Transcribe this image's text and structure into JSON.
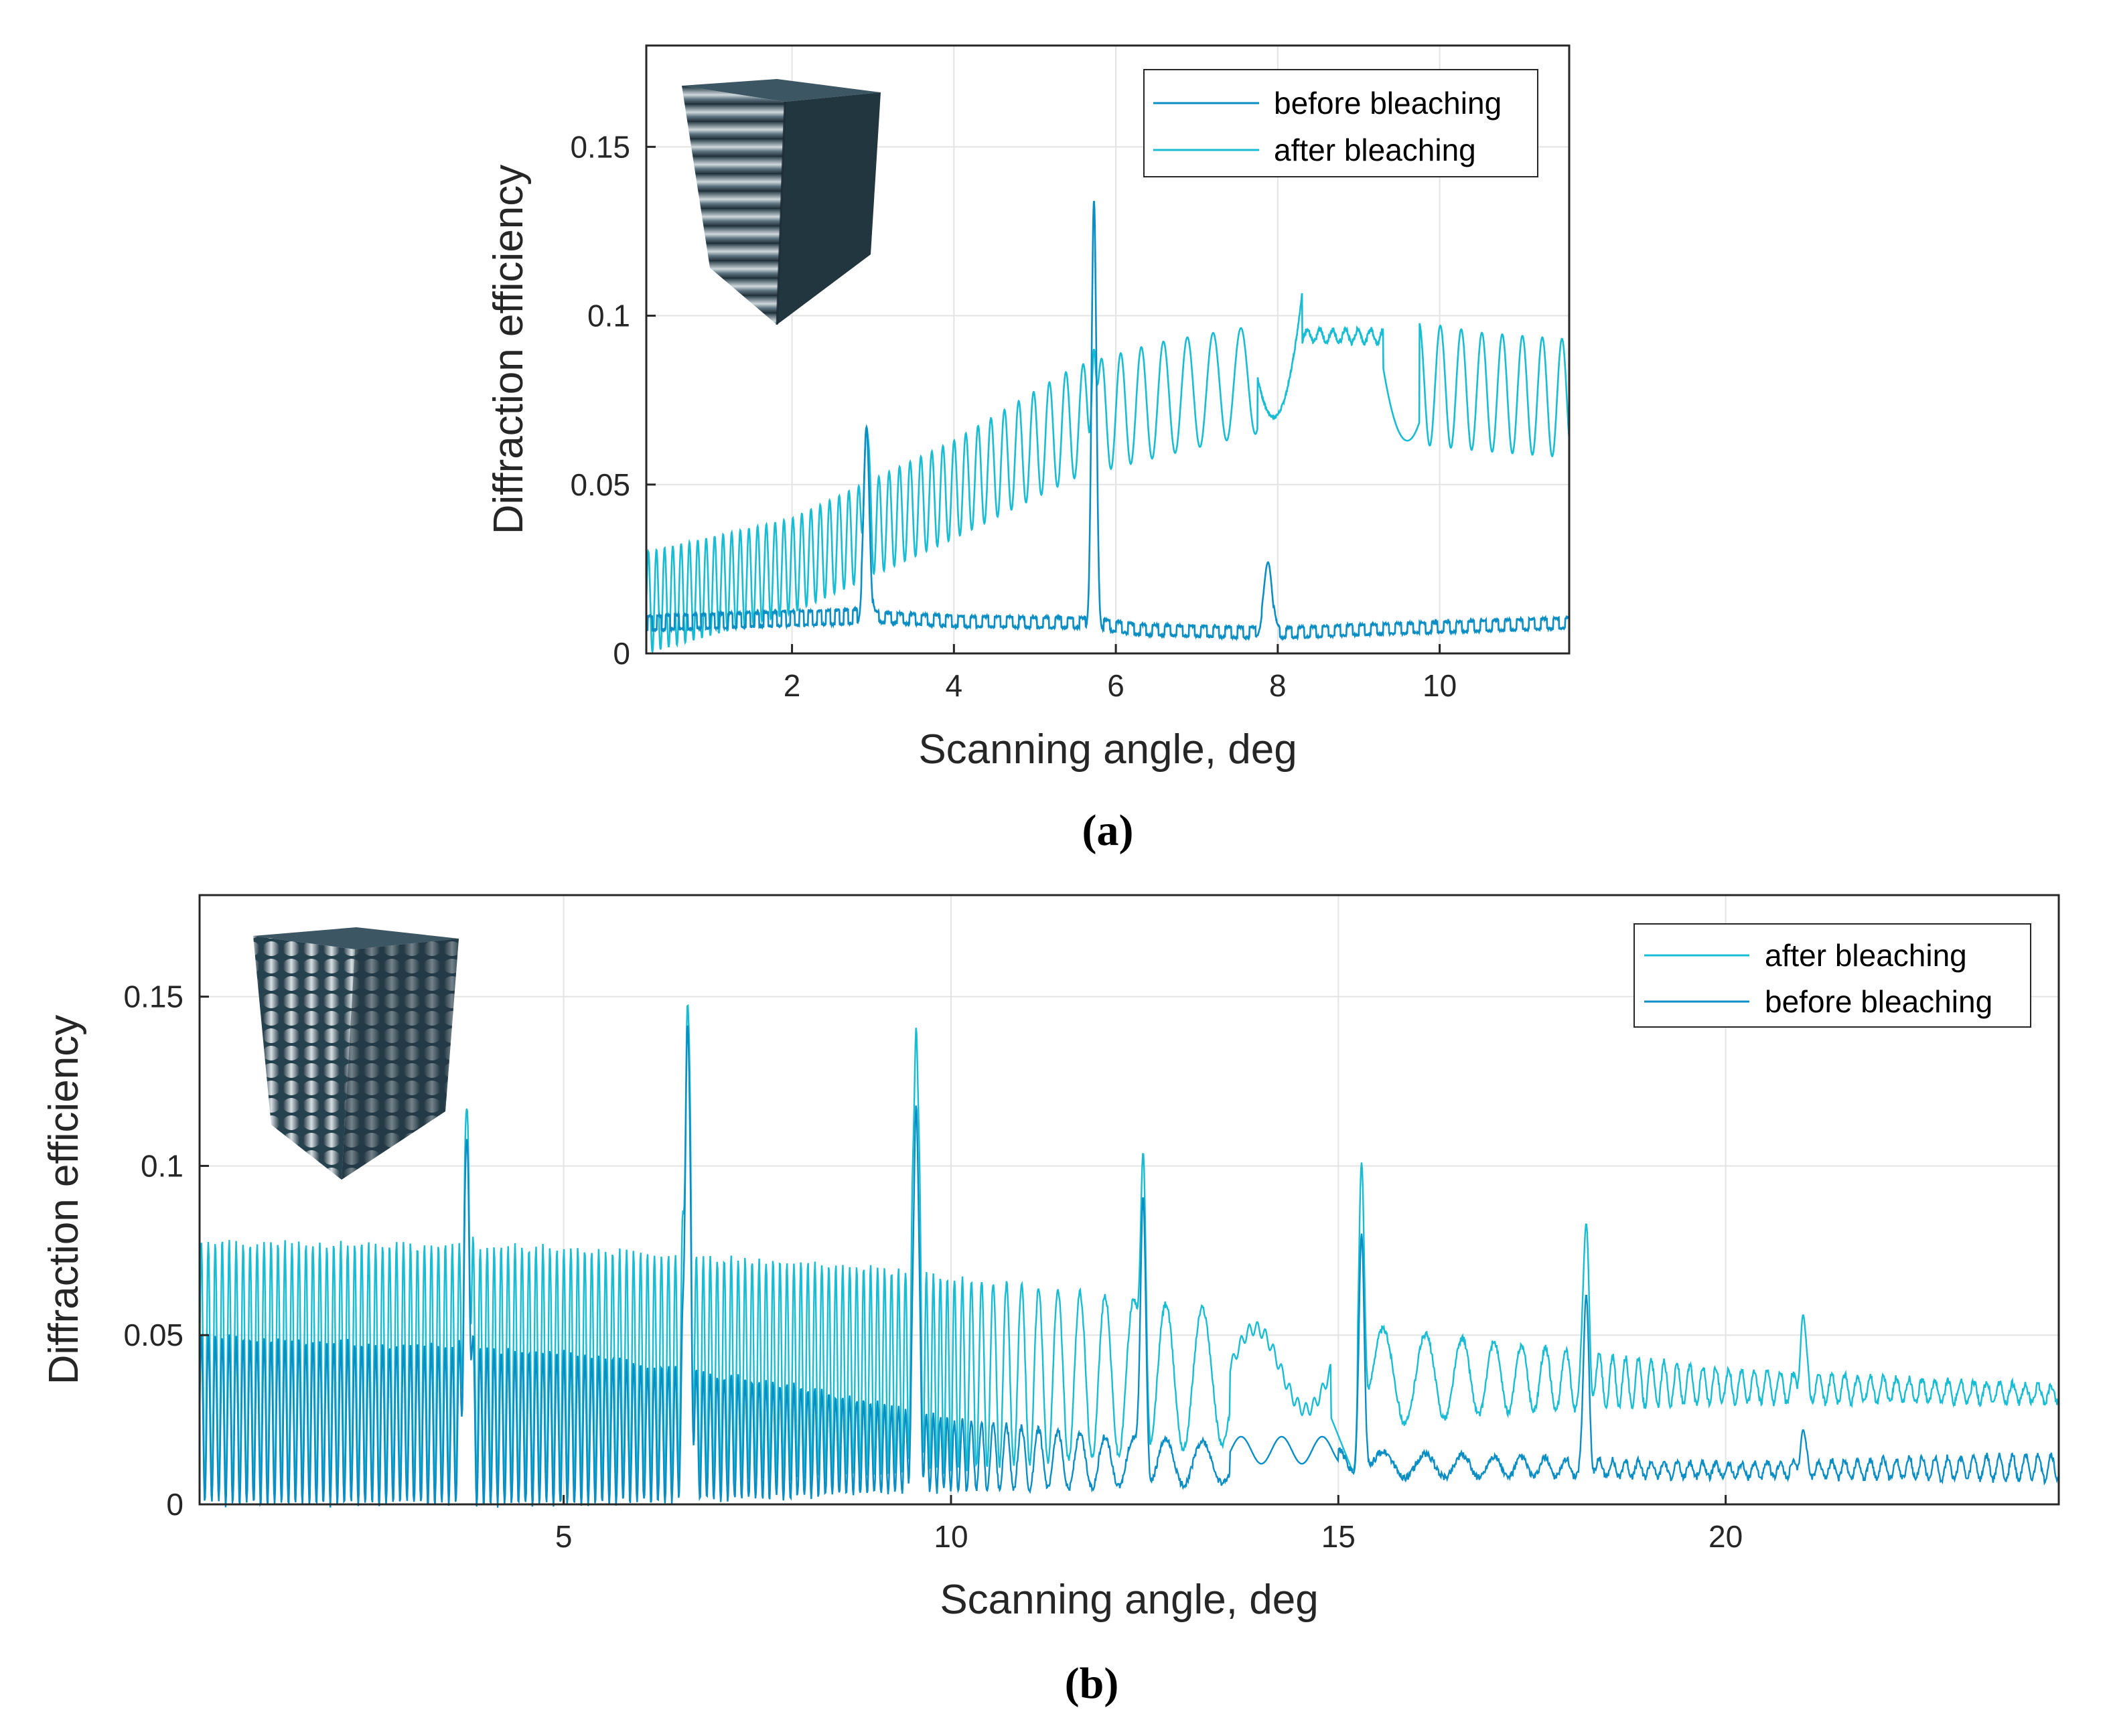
{
  "colors": {
    "before": "#0a8ec4",
    "after": "#19bdd3",
    "axis": "#262626",
    "grid": "#e3e3e3"
  },
  "chart_data": [
    {
      "panel": "a",
      "type": "line",
      "xlabel": "Scanning angle, deg",
      "ylabel": "Diffraction efficiency",
      "xlim": [
        0.2,
        11.6
      ],
      "ylim": [
        0,
        0.18
      ],
      "xticks": [
        2,
        4,
        6,
        8,
        10
      ],
      "xtick_labels": [
        "2",
        "4",
        "6",
        "8",
        "10"
      ],
      "yticks": [
        0,
        0.05,
        0.1,
        0.15
      ],
      "ytick_labels": [
        "0",
        "0.05",
        "0.1",
        "0.15"
      ],
      "grid": true,
      "legend_position": "top-right",
      "legend": [
        "before bleaching",
        "after bleaching"
      ],
      "panel_label": "(a)",
      "inset": "3D rendering of layered grating structure (top-left)",
      "series": [
        {
          "name": "before bleaching",
          "baseline": [
            [
              0.2,
              0.009
            ],
            [
              2.9,
              0.011
            ],
            [
              4.0,
              0.0095
            ],
            [
              5.7,
              0.009
            ],
            [
              6.3,
              0.007
            ],
            [
              8.0,
              0.006
            ],
            [
              9.0,
              0.007
            ],
            [
              11.6,
              0.009
            ]
          ],
          "osc_amp": 0.0025,
          "osc_period": 0.15,
          "peaks": [
            {
              "x": 2.92,
              "y": 0.067,
              "w": 0.035
            },
            {
              "x": 5.73,
              "y": 0.134,
              "w": 0.03
            },
            {
              "x": 7.88,
              "y": 0.027,
              "w": 0.05
            }
          ]
        },
        {
          "name": "after bleaching",
          "envelope_upper": [
            [
              0.2,
              0.03
            ],
            [
              2.0,
              0.04
            ],
            [
              4.0,
              0.063
            ],
            [
              5.5,
              0.085
            ],
            [
              6.5,
              0.092
            ],
            [
              7.7,
              0.097
            ],
            [
              9.3,
              0.1
            ],
            [
              10.5,
              0.095
            ],
            [
              11.6,
              0.093
            ]
          ],
          "envelope_lower": [
            [
              0.2,
              0.0
            ],
            [
              2.0,
              0.012
            ],
            [
              4.0,
              0.034
            ],
            [
              5.5,
              0.052
            ],
            [
              6.5,
              0.058
            ],
            [
              7.7,
              0.065
            ],
            [
              9.3,
              0.063
            ],
            [
              10.5,
              0.06
            ],
            [
              11.6,
              0.058
            ]
          ],
          "oscillation_periods": [
            [
              0.2,
              0.1
            ],
            [
              2.0,
              0.11
            ],
            [
              4.0,
              0.14
            ],
            [
              6.0,
              0.24
            ],
            [
              7.6,
              0.36
            ],
            [
              10.0,
              0.26
            ],
            [
              11.6,
              0.24
            ]
          ],
          "features": [
            {
              "type": "dip",
              "x": 7.95,
              "y": 0.07
            },
            {
              "type": "plateau",
              "x_from": 8.3,
              "x_to": 9.3,
              "y": 0.094
            },
            {
              "type": "dip",
              "x": 9.6,
              "y": 0.063
            },
            {
              "type": "spike",
              "x": 2.92,
              "y": 0.067
            },
            {
              "type": "spike",
              "x": 5.73,
              "y": 0.09
            }
          ]
        }
      ]
    },
    {
      "panel": "b",
      "type": "line",
      "xlabel": "Scanning angle, deg",
      "ylabel": "Diffraction efficiency",
      "xlim": [
        0.3,
        24.3
      ],
      "ylim": [
        0,
        0.18
      ],
      "xticks": [
        5,
        10,
        15,
        20
      ],
      "xtick_labels": [
        "5",
        "10",
        "15",
        "20"
      ],
      "yticks": [
        0,
        0.05,
        0.1,
        0.15
      ],
      "ytick_labels": [
        "0",
        "0.05",
        "0.1",
        "0.15"
      ],
      "grid": true,
      "legend_position": "top-right",
      "legend": [
        "after bleaching",
        "before bleaching"
      ],
      "panel_label": "(b)",
      "inset": "3D rendering of layered grating structure (top-left)",
      "series": [
        {
          "name": "after bleaching",
          "envelope_upper": [
            [
              0.3,
              0.078
            ],
            [
              5.0,
              0.076
            ],
            [
              9.0,
              0.07
            ],
            [
              11.5,
              0.063
            ],
            [
              12.5,
              0.06
            ],
            [
              17.0,
              0.048
            ],
            [
              20.0,
              0.04
            ],
            [
              24.3,
              0.035
            ]
          ],
          "envelope_lower": [
            [
              0.3,
              0.002
            ],
            [
              5.0,
              0.004
            ],
            [
              9.0,
              0.008
            ],
            [
              11.5,
              0.013
            ],
            [
              12.5,
              0.015
            ],
            [
              17.0,
              0.027
            ],
            [
              20.0,
              0.03
            ],
            [
              24.3,
              0.03
            ]
          ],
          "peaks": [
            {
              "x": 3.75,
              "y": 0.117
            },
            {
              "x": 6.6,
              "y": 0.148
            },
            {
              "x": 9.55,
              "y": 0.141
            },
            {
              "x": 12.48,
              "y": 0.104
            },
            {
              "x": 15.3,
              "y": 0.101
            },
            {
              "x": 18.2,
              "y": 0.083
            },
            {
              "x": 21.0,
              "y": 0.056
            }
          ]
        },
        {
          "name": "before bleaching",
          "envelope_upper": [
            [
              0.3,
              0.05
            ],
            [
              5.0,
              0.045
            ],
            [
              8.0,
              0.035
            ],
            [
              10.0,
              0.025
            ],
            [
              12.0,
              0.02
            ],
            [
              16.0,
              0.015
            ],
            [
              20.0,
              0.012
            ],
            [
              24.3,
              0.015
            ]
          ],
          "envelope_lower": [
            [
              0.3,
              0.0
            ],
            [
              5.0,
              0.0
            ],
            [
              8.0,
              0.002
            ],
            [
              10.0,
              0.004
            ],
            [
              12.0,
              0.005
            ],
            [
              16.0,
              0.008
            ],
            [
              20.0,
              0.008
            ],
            [
              24.3,
              0.007
            ]
          ],
          "peaks": [
            {
              "x": 3.75,
              "y": 0.108
            },
            {
              "x": 6.6,
              "y": 0.142
            },
            {
              "x": 9.55,
              "y": 0.118
            },
            {
              "x": 12.48,
              "y": 0.091
            },
            {
              "x": 15.3,
              "y": 0.08
            },
            {
              "x": 18.2,
              "y": 0.062
            },
            {
              "x": 21.0,
              "y": 0.022
            }
          ]
        }
      ]
    }
  ]
}
